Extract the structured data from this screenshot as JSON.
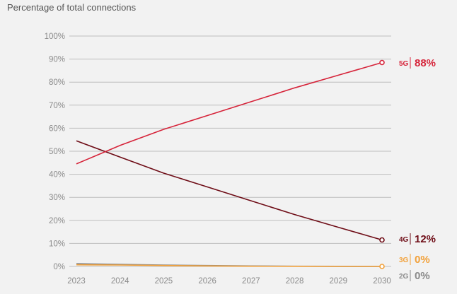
{
  "chart_data": {
    "type": "line",
    "title": "Percentage of total connections",
    "x": [
      "2023",
      "2024",
      "2025",
      "2026",
      "2027",
      "2028",
      "2029",
      "2030"
    ],
    "y_ticks": [
      "0%",
      "10%",
      "20%",
      "30%",
      "40%",
      "50%",
      "60%",
      "70%",
      "80%",
      "90%",
      "100%"
    ],
    "ylim": [
      0,
      100
    ],
    "grid": true,
    "series": [
      {
        "name": "5G",
        "color": "#d6243a",
        "values": [
          44.5,
          52.5,
          59.5,
          65.5,
          71.5,
          77.5,
          83,
          88.5
        ],
        "end_label": "88%"
      },
      {
        "name": "4G",
        "color": "#6e0c16",
        "values": [
          54.5,
          47.5,
          40.5,
          34.5,
          28.5,
          22.5,
          17,
          11.5
        ],
        "end_label": "12%"
      },
      {
        "name": "3G",
        "color": "#f2a13a",
        "values": [
          0.7,
          0.6,
          0.4,
          0.2,
          0.1,
          0.05,
          0,
          0
        ],
        "end_label": "0%"
      },
      {
        "name": "2G",
        "color": "#8a8a8a",
        "values": [
          1.2,
          0.9,
          0.6,
          0.4,
          0.2,
          0.1,
          0.05,
          0
        ],
        "end_label": "0%"
      }
    ]
  }
}
